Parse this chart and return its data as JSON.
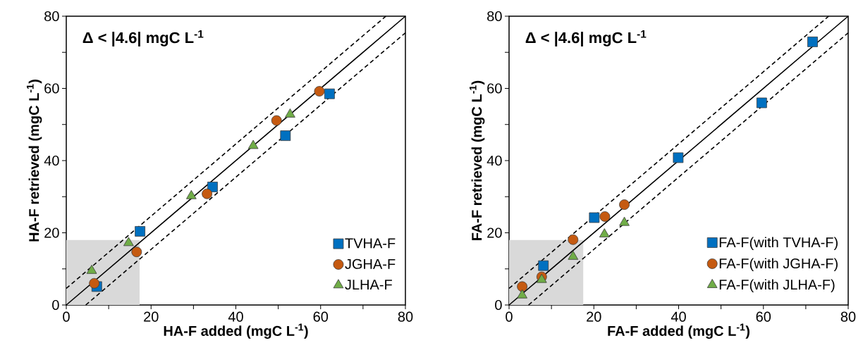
{
  "chart_data": [
    {
      "type": "scatter",
      "annotations": [
        "Δ < |4.6| mgC L$^{-1}$"
      ],
      "xlabel": "HA-F added (mgC L$^{-1}$)",
      "ylabel": "HA-F retrieved (mgC L$^{-1}$)",
      "xlim": [
        0,
        80
      ],
      "ylim": [
        0,
        80
      ],
      "xticks": [
        0,
        {
          "value": 10,
          "label": null
        },
        20,
        {
          "value": 30,
          "label": null
        },
        40,
        {
          "value": 50,
          "label": null
        },
        60,
        {
          "value": 70,
          "label": null
        },
        80
      ],
      "yticks": [
        0,
        {
          "value": 10,
          "label": null
        },
        20,
        {
          "value": 30,
          "label": null
        },
        40,
        {
          "value": 50,
          "label": null
        },
        60,
        {
          "value": 70,
          "label": null
        },
        80
      ],
      "legend": "bottom right",
      "series": [
        {
          "type": "area",
          "color": "#d9d9d9",
          "x": [
            0,
            17.3
          ],
          "values": [
            18,
            18
          ]
        },
        {
          "type": "line",
          "color": "#000000",
          "line_style": "solid",
          "marker": "none",
          "x": [
            0,
            80
          ],
          "values": [
            0,
            80
          ]
        },
        {
          "type": "line",
          "color": "#000000",
          "line_style": "dashed",
          "marker": "none",
          "x": [
            0,
            75.4
          ],
          "values": [
            4.6,
            80
          ]
        },
        {
          "type": "line",
          "color": "#000000",
          "line_style": "dashed",
          "marker": "none",
          "x": [
            4.6,
            80
          ],
          "values": [
            0,
            75.4
          ]
        },
        {
          "name": "TVHA-F",
          "color": "#0070c0",
          "marker": "square",
          "x": [
            7.2,
            17.4,
            34.5,
            51.7,
            62.1
          ],
          "values": [
            5.1,
            20.4,
            32.7,
            46.9,
            58.5
          ]
        },
        {
          "name": "JGHA-F",
          "color": "#c55a11",
          "marker": "circle",
          "x": [
            6.6,
            16.6,
            33.2,
            49.6,
            59.7
          ],
          "values": [
            6.0,
            14.7,
            30.8,
            51.1,
            59.2
          ]
        },
        {
          "name": "JLHA-F",
          "color": "#70ad47",
          "marker": "triangle",
          "x": [
            6.0,
            14.7,
            29.5,
            44.1,
            52.8
          ],
          "values": [
            9.5,
            17.2,
            30.2,
            44.1,
            52.8
          ]
        }
      ]
    },
    {
      "type": "scatter",
      "annotations": [
        "Δ < |4.6| mgC L$^{-1}$"
      ],
      "xlabel": "FA-F added (mgC L$^{-1}$)",
      "ylabel": "FA-F retrieved (mgC L$^{-1}$)",
      "xlim": [
        0,
        80
      ],
      "ylim": [
        0,
        80
      ],
      "xticks": [
        0,
        {
          "value": 10,
          "label": null
        },
        20,
        {
          "value": 30,
          "label": null
        },
        40,
        {
          "value": 50,
          "label": null
        },
        60,
        {
          "value": 70,
          "label": null
        },
        80
      ],
      "yticks": [
        0,
        {
          "value": 10,
          "label": null
        },
        20,
        {
          "value": 30,
          "label": null
        },
        40,
        {
          "value": 50,
          "label": null
        },
        60,
        {
          "value": 70,
          "label": null
        },
        80
      ],
      "legend": "bottom right",
      "series": [
        {
          "type": "area",
          "color": "#d9d9d9",
          "x": [
            0,
            17.5
          ],
          "values": [
            18,
            18
          ]
        },
        {
          "type": "line",
          "color": "#000000",
          "line_style": "solid",
          "marker": "none",
          "x": [
            0,
            80
          ],
          "values": [
            0,
            80
          ]
        },
        {
          "type": "line",
          "color": "#000000",
          "line_style": "dashed",
          "marker": "none",
          "x": [
            0,
            75.4
          ],
          "values": [
            4.6,
            80
          ]
        },
        {
          "type": "line",
          "color": "#000000",
          "line_style": "dashed",
          "marker": "none",
          "x": [
            4.6,
            80
          ],
          "values": [
            0,
            75.4
          ]
        },
        {
          "name": "FA-F(with TVHA-F)",
          "color": "#0070c0",
          "marker": "square",
          "x": [
            8.1,
            20.1,
            39.9,
            59.6,
            71.6
          ],
          "values": [
            10.9,
            24.2,
            40.8,
            56.0,
            72.9
          ]
        },
        {
          "name": "FA-F(with JGHA-F)",
          "color": "#c55a11",
          "marker": "circle",
          "x": [
            3.1,
            7.7,
            15.1,
            22.6,
            27.2
          ],
          "values": [
            5.1,
            7.8,
            18.1,
            24.5,
            27.8
          ]
        },
        {
          "name": "FA-F(with JLHA-F)",
          "color": "#70ad47",
          "marker": "triangle",
          "x": [
            3.1,
            7.7,
            15.1,
            22.5,
            27.2
          ],
          "values": [
            2.7,
            7.0,
            13.4,
            19.6,
            22.8
          ]
        }
      ]
    }
  ]
}
